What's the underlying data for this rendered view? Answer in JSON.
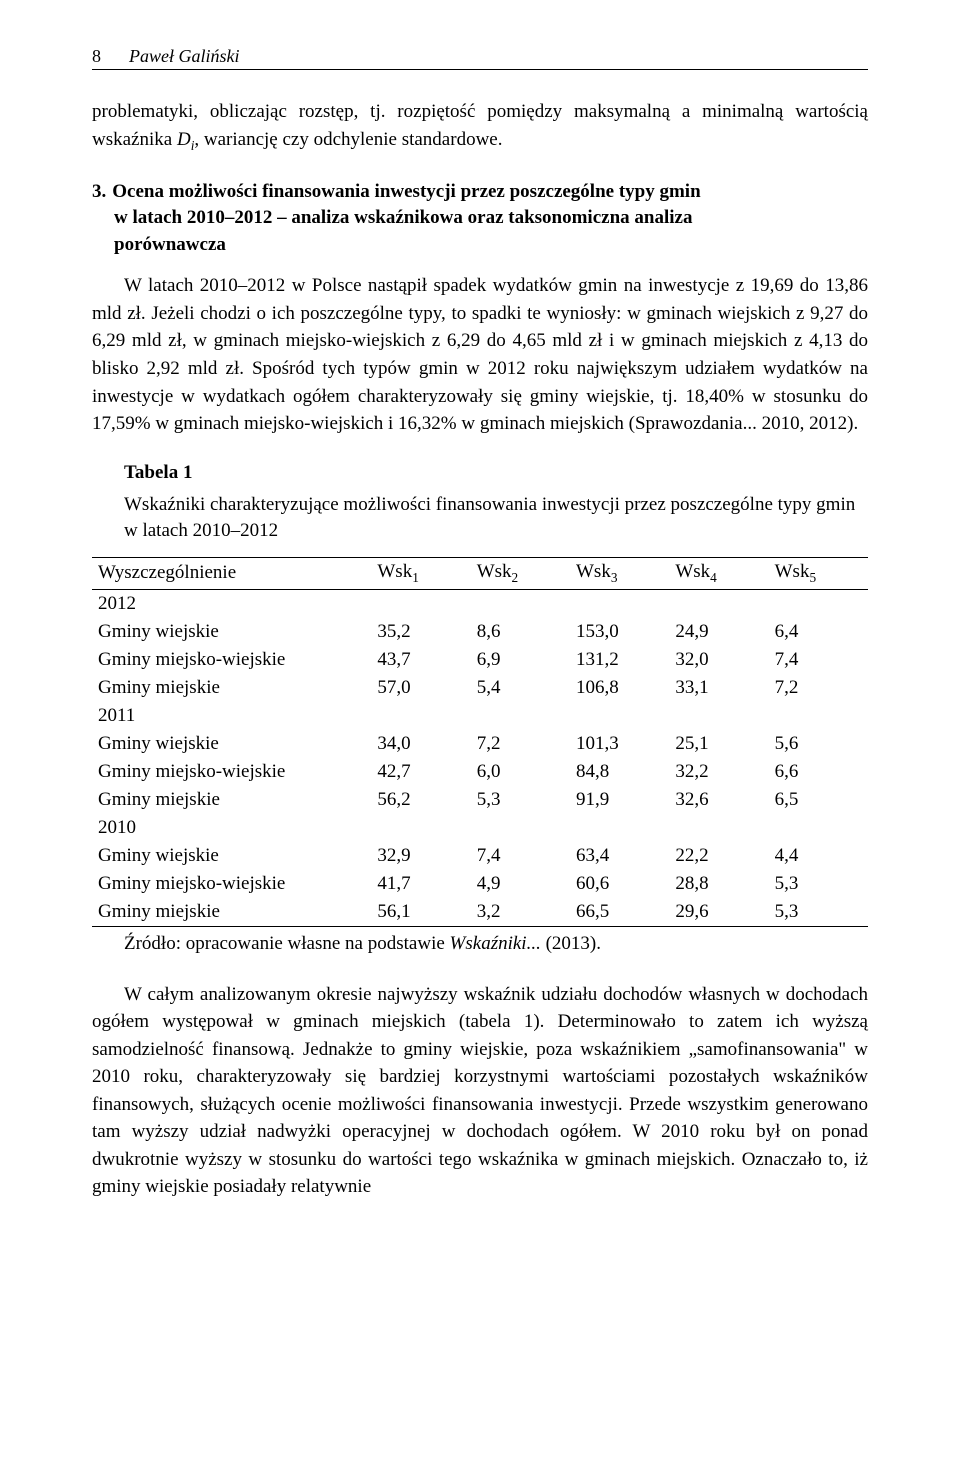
{
  "header": {
    "page_number": "8",
    "author": "Paweł Galiński"
  },
  "intro_para": "problematyki, obliczając rozstęp, tj. rozpiętość pomiędzy maksymalną a minimalną wartością wskaźnika D_i, wariancję czy odchylenie standardowe.",
  "section": {
    "number": "3.",
    "title_line1": "Ocena możliwości finansowania inwestycji przez poszczególne typy gmin",
    "title_line2": "w latach 2010–2012 – analiza wskaźnikowa oraz taksonomiczna analiza",
    "title_line3": "porównawcza"
  },
  "body_para": "W latach 2010–2012 w Polsce nastąpił spadek wydatków gmin na inwestycje z 19,69 do 13,86 mld zł. Jeżeli chodzi o ich poszczególne typy, to spadki te wyniosły: w gminach wiejskich z 9,27 do 6,29 mld zł, w gminach miejsko-wiejskich z 6,29 do 4,65 mld zł i w gminach miejskich z 4,13 do blisko 2,92 mld zł. Spośród tych typów gmin w 2012 roku największym udziałem wydatków na inwestycje w wydatkach ogółem charakteryzowały się gminy wiejskie, tj. 18,40% w stosunku do 17,59% w gminach miejsko-wiejskich i 16,32% w gminach miejskich (Sprawozdania... 2010, 2012).",
  "table": {
    "label": "Tabela 1",
    "caption": "Wskaźniki charakteryzujące możliwości finansowania inwestycji przez poszczególne typy gmin w latach 2010–2012",
    "columns": [
      "Wyszczególnienie",
      "Wsk1",
      "Wsk2",
      "Wsk3",
      "Wsk4",
      "Wsk5"
    ],
    "groups": [
      {
        "year": "2012",
        "rows": [
          [
            "Gminy wiejskie",
            "35,2",
            "8,6",
            "153,0",
            "24,9",
            "6,4"
          ],
          [
            "Gminy miejsko-wiejskie",
            "43,7",
            "6,9",
            "131,2",
            "32,0",
            "7,4"
          ],
          [
            "Gminy miejskie",
            "57,0",
            "5,4",
            "106,8",
            "33,1",
            "7,2"
          ]
        ]
      },
      {
        "year": "2011",
        "rows": [
          [
            "Gminy wiejskie",
            "34,0",
            "7,2",
            "101,3",
            "25,1",
            "5,6"
          ],
          [
            "Gminy miejsko-wiejskie",
            "42,7",
            "6,0",
            "84,8",
            "32,2",
            "6,6"
          ],
          [
            "Gminy miejskie",
            "56,2",
            "5,3",
            "91,9",
            "32,6",
            "6,5"
          ]
        ]
      },
      {
        "year": "2010",
        "rows": [
          [
            "Gminy wiejskie",
            "32,9",
            "7,4",
            "63,4",
            "22,2",
            "4,4"
          ],
          [
            "Gminy miejsko-wiejskie",
            "41,7",
            "4,9",
            "60,6",
            "28,8",
            "5,3"
          ],
          [
            "Gminy miejskie",
            "56,1",
            "3,2",
            "66,5",
            "29,6",
            "5,3"
          ]
        ]
      }
    ],
    "source_prefix": "Źródło: opracowanie własne na podstawie ",
    "source_ital": "Wskaźniki...",
    "source_suffix": " (2013)."
  },
  "closing_para": "W całym analizowanym okresie najwyższy wskaźnik udziału dochodów własnych w dochodach ogółem występował w gminach miejskich (tabela 1). Determinowało to zatem ich wyższą samodzielność finansową. Jednakże to gminy wiejskie, poza wskaźnikiem „samofinansowania\" w 2010 roku, charakteryzowały się bardziej korzystnymi wartościami pozostałych wskaźników finansowych, służących ocenie możliwości finansowania inwestycji. Przede wszystkim generowano tam wyższy udział nadwyżki operacyjnej w dochodach ogółem. W 2010 roku był on ponad dwukrotnie wyższy w stosunku do wartości tego wskaźnika w gminach miejskich. Oznaczało to, iż gminy wiejskie posiadały relatywnie"
}
